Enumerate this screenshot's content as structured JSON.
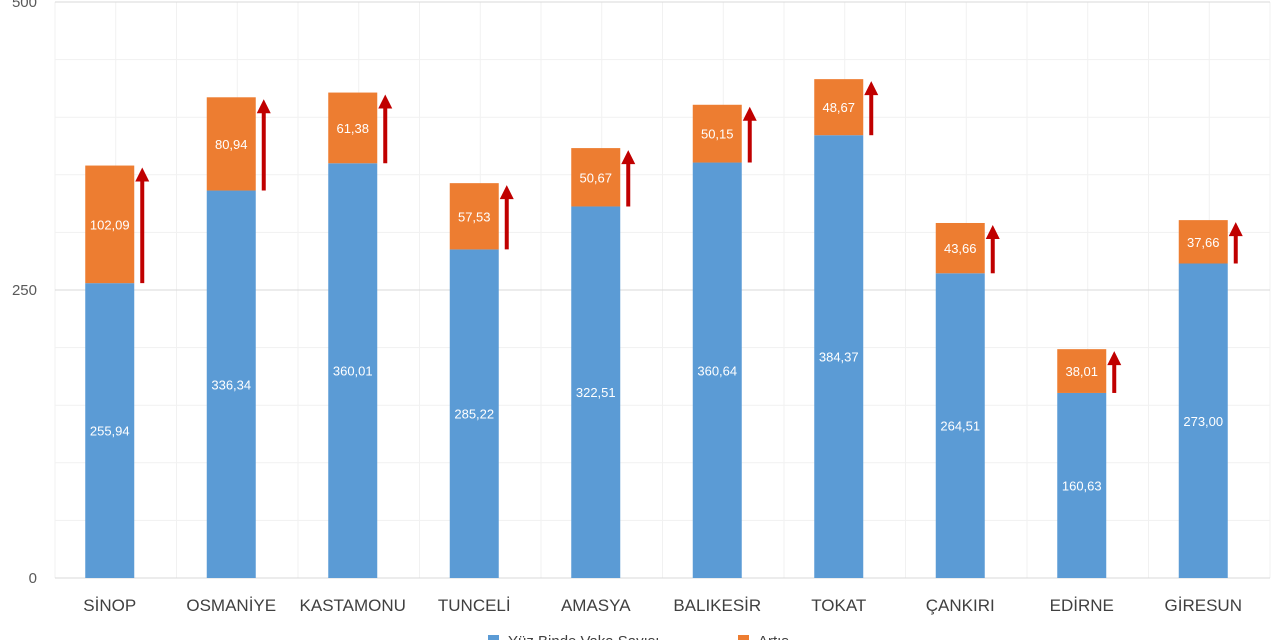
{
  "chart_data": {
    "type": "bar",
    "stacked": true,
    "categories": [
      "SİNOP",
      "OSMANİYE",
      "KASTAMONU",
      "TUNCELİ",
      "AMASYA",
      "BALIKESİR",
      "TOKAT",
      "ÇANKIRI",
      "EDİRNE",
      "GİRESUN"
    ],
    "series": [
      {
        "name": "Yüz Binde Vaka Sayısı",
        "color": "#5B9BD5",
        "values": [
          255.94,
          336.34,
          360.01,
          285.22,
          322.51,
          360.64,
          384.37,
          264.51,
          160.63,
          273.0
        ],
        "labels": [
          "255,94",
          "336,34",
          "360,01",
          "285,22",
          "322,51",
          "360,64",
          "384,37",
          "264,51",
          "160,63",
          "273,00"
        ]
      },
      {
        "name": "Artış",
        "color": "#ED7D31",
        "values": [
          102.09,
          80.94,
          61.38,
          57.53,
          50.67,
          50.15,
          48.67,
          43.66,
          38.01,
          37.66
        ],
        "labels": [
          "102,09",
          "80,94",
          "61,38",
          "57,53",
          "50,67",
          "50,15",
          "48,67",
          "43,66",
          "38,01",
          "37,66"
        ]
      }
    ],
    "y_ticks": [
      "0",
      "250",
      "500"
    ],
    "ylim": [
      0,
      500
    ],
    "grid": true,
    "legend": "bottom",
    "arrow_color": "#C00000",
    "arrow_direction": "up"
  }
}
